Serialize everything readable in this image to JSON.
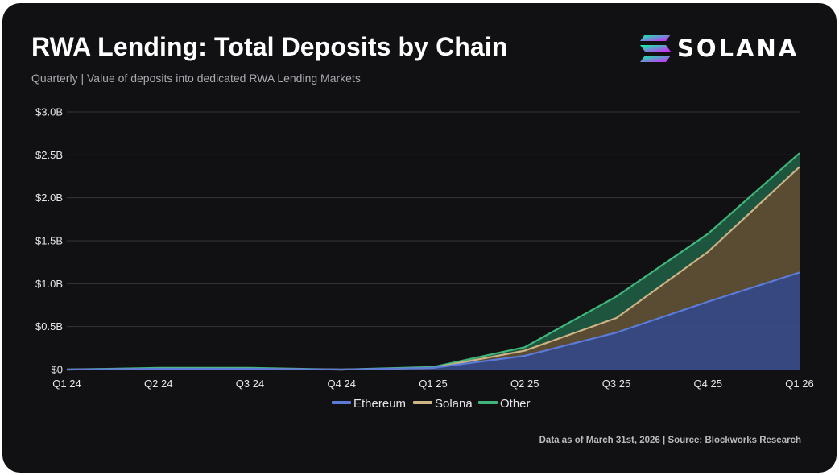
{
  "header": {
    "title": "RWA Lending: Total Deposits by Chain",
    "subtitle": "Quarterly | Value of deposits into dedicated RWA Lending Markets"
  },
  "logo": {
    "text": "SOLANA",
    "icon": "solana-logo-icon"
  },
  "footer": {
    "source": "Data as of March 31st, 2026 | Source: Blockworks Research"
  },
  "colors": {
    "background": "#111114",
    "grid": "#34343a",
    "ethereum_line": "#5b7bd6",
    "ethereum_fill": "#3a4c86",
    "solana_line": "#cdb386",
    "solana_fill": "#5e5034",
    "other_line": "#3fb57b",
    "other_fill": "#1f5a40"
  },
  "chart_data": {
    "type": "area",
    "stacked": true,
    "title": "RWA Lending: Total Deposits by Chain",
    "subtitle": "Quarterly | Value of deposits into dedicated RWA Lending Markets",
    "categories": [
      "Q1 24",
      "Q2 24",
      "Q3 24",
      "Q4 24",
      "Q1 25",
      "Q2 25",
      "Q3 25",
      "Q4 25",
      "Q1 26"
    ],
    "series": [
      {
        "name": "Ethereum",
        "values": [
          0.0,
          0.01,
          0.01,
          0.0,
          0.02,
          0.16,
          0.43,
          0.79,
          1.13
        ]
      },
      {
        "name": "Solana",
        "values": [
          0.0,
          0.0,
          0.0,
          0.0,
          0.0,
          0.06,
          0.17,
          0.58,
          1.23
        ]
      },
      {
        "name": "Other",
        "values": [
          0.0,
          0.01,
          0.01,
          0.0,
          0.01,
          0.04,
          0.25,
          0.21,
          0.16
        ]
      }
    ],
    "yticks": [
      0,
      0.5,
      1.0,
      1.5,
      2.0,
      2.5,
      3.0
    ],
    "ytick_labels": [
      "$0",
      "$0.5B",
      "$1.0B",
      "$1.5B",
      "$2.0B",
      "$2.5B",
      "$3.0B"
    ],
    "ylim": [
      0,
      3.0
    ],
    "grid": true,
    "legend_position": "bottom-center"
  }
}
